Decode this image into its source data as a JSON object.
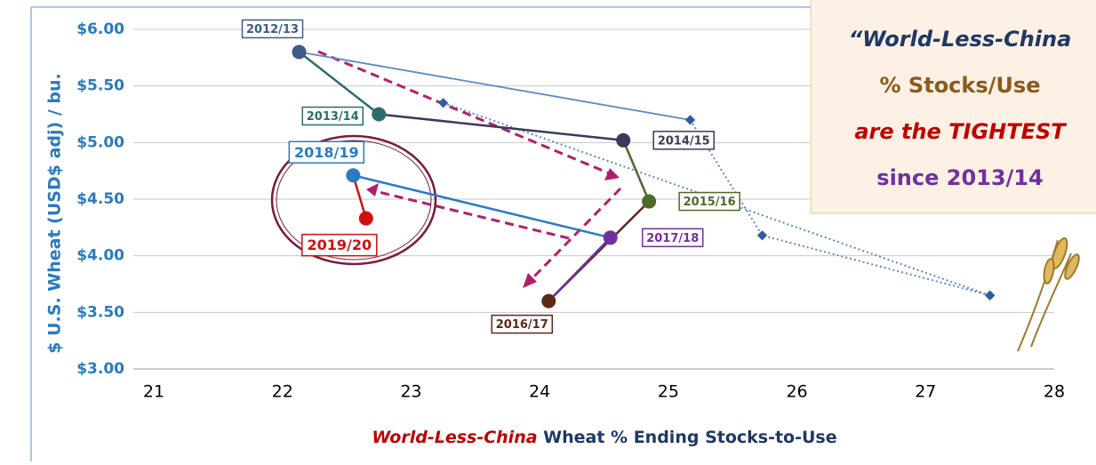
{
  "chart_data": {
    "type": "line",
    "y_label": "$ U.S. Wheat (USD$ adj) / bu.",
    "x_label": [
      {
        "text": "World-Less-China",
        "color": "#c00000",
        "italic": true
      },
      {
        "text": " Wheat % Ending Stocks-to-Use",
        "color": "#1f3864",
        "italic": false
      }
    ],
    "annotation": [
      {
        "text": "“World-Less-China",
        "color": "#1f3864",
        "italic": true
      },
      {
        "text": "% Stocks/Use",
        "color": "#8b5a1c",
        "italic": false
      },
      {
        "text": "are the TIGHTEST",
        "color": "#c00000",
        "italic": true
      },
      {
        "text": "since 2013/14",
        "color": "#7030a0",
        "italic": false
      }
    ],
    "xlim": [
      21,
      28
    ],
    "xticks": [
      21,
      22,
      23,
      24,
      25,
      26,
      27,
      28
    ],
    "ylim": [
      3,
      6
    ],
    "yticks": [
      {
        "value": 3,
        "label": "$3.00"
      },
      {
        "value": 3.5,
        "label": "$3.50"
      },
      {
        "value": 4,
        "label": "$4.00"
      },
      {
        "value": 4.5,
        "label": "$4.50"
      },
      {
        "value": 5,
        "label": "$5.00"
      },
      {
        "value": 5.5,
        "label": "$5.50"
      },
      {
        "value": 6,
        "label": "$6.00"
      }
    ],
    "grid": true,
    "series": [
      {
        "x": [
          22.13,
          25.17
        ],
        "values": [
          5.8,
          5.2
        ],
        "color": "#5b8ac6",
        "dashed": false,
        "marker": "none"
      },
      {
        "x": [
          25.17,
          25.73,
          27.5
        ],
        "values": [
          5.2,
          4.18,
          3.65
        ],
        "color": "#5b8ac6",
        "dashed": true,
        "marker": "diamond"
      },
      {
        "x": [
          23.25,
          27.5
        ],
        "values": [
          5.35,
          3.65
        ],
        "color": "#5b8ac6",
        "dashed": true,
        "marker": "diamond"
      },
      {
        "x": [
          22.13,
          22.75,
          24.65,
          24.85,
          24.07,
          24.55,
          22.55,
          22.65
        ],
        "values": [
          5.8,
          5.25,
          5.02,
          4.48,
          3.6,
          4.16,
          4.71,
          4.33
        ],
        "point_labels": [
          "2012/13",
          "2013/14",
          "2014/15",
          "2015/16",
          "2016/17",
          "2017/18",
          "2018/19",
          "2019/20"
        ],
        "colors": [
          "#3e5a8a",
          "#2e6b6b",
          "#3a3a5a",
          "#4f6a2a",
          "#5a2a1a",
          "#7030a0",
          "#2a7ac6",
          "#d01010"
        ],
        "dashed": false,
        "marker": "circle"
      }
    ]
  }
}
